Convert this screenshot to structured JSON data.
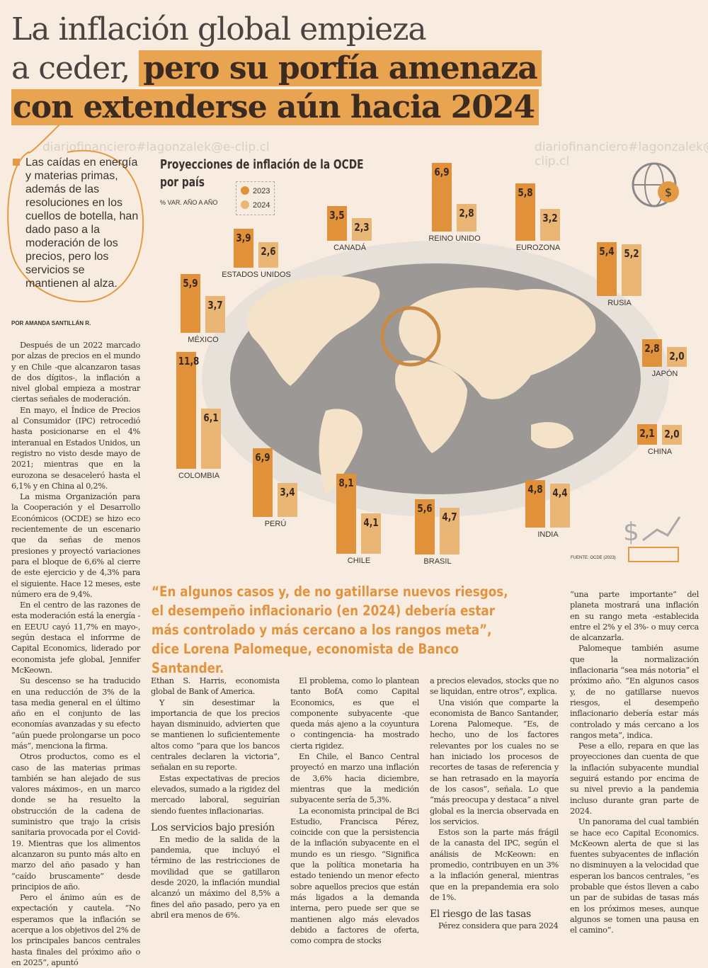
{
  "headline": {
    "line1": "La inflación global empieza",
    "line2a": "a ceder, ",
    "line2b": "pero su porfía amenaza",
    "line3": "con extenderse aún hacia 2024"
  },
  "watermark": "diariofinanciero#lagonzalek@e-clip.cl",
  "lead": "Las caídas en energía y materias primas, además de las resoluciones en los cuellos de botella, han dado paso a la moderación de los precios, pero los servicios se mantienen al alza.",
  "byline": "POR AMANDA SANTILLÁN R.",
  "chart": {
    "title_line1": "Proyecciones de inflación de la OCDE",
    "title_line2": "por país",
    "subtitle": "% VAR. AÑO A AÑO",
    "source": "FUENTE: OCDE (2023)"
  },
  "chart_data": {
    "type": "bar",
    "title": "Proyecciones de inflación de la OCDE por país",
    "ylabel": "% VAR. AÑO A AÑO",
    "legend": [
      "2023",
      "2024"
    ],
    "colors": {
      "2023": "#e0913a",
      "2024": "#eab676"
    },
    "countries": [
      {
        "name": "ESTADOS UNIDOS",
        "v2023": "3,9",
        "v2024": "2,6"
      },
      {
        "name": "CANADÁ",
        "v2023": "3,5",
        "v2024": "2,3"
      },
      {
        "name": "REINO UNIDO",
        "v2023": "6,9",
        "v2024": "2,8"
      },
      {
        "name": "EUROZONA",
        "v2023": "5,8",
        "v2024": "3,2"
      },
      {
        "name": "RUSIA",
        "v2023": "5,4",
        "v2024": "5,2"
      },
      {
        "name": "MÉXICO",
        "v2023": "5,9",
        "v2024": "3,7"
      },
      {
        "name": "JAPÓN",
        "v2023": "2,8",
        "v2024": "2,0"
      },
      {
        "name": "COLOMBIA",
        "v2023": "11,8",
        "v2024": "6,1"
      },
      {
        "name": "CHINA",
        "v2023": "2,1",
        "v2024": "2,0"
      },
      {
        "name": "PERÚ",
        "v2023": "6,9",
        "v2024": "3,4"
      },
      {
        "name": "CHILE",
        "v2023": "8,1",
        "v2024": "4,1"
      },
      {
        "name": "BRASIL",
        "v2023": "5,6",
        "v2024": "4,7"
      },
      {
        "name": "INDIA",
        "v2023": "4,8",
        "v2024": "4,4"
      }
    ]
  },
  "quote": "“En algunos casos y, de no gatillarse nuevos riesgos, el desempeño inflacionario (en 2024) debería estar más controlado y más cercano a los rangos meta”, dice Lorena Palomeque, economista de Banco Santander.",
  "col1": [
    "Después de un 2022 marcado por alzas de precios en el mundo y en Chile -que alcanzaron tasas de dos dígitos-, la inflación a nivel global empieza a mostrar ciertas señales de moderación.",
    "En mayo, el Índice de Precios al Consumidor (IPC) retrocedió hasta posicionarse en el 4% interanual en Estados Unidos, un registro no visto desde mayo de 2021; mientras que en la eurozona se desaceleró hasta el 6,1% y en China al 0,2%.",
    "La misma Organización para la Cooperación y el Desarrollo Económicos (OCDE) se hizo eco recientemente de un escenario que da señas de menos presiones y proyectó variaciones para el bloque de 6,6% al cierre de este ejercicio y de 4,3% para el siguiente. Hace 12 meses, este número era de 9,4%.",
    "En el centro de las razones de esta moderación está la energía -en EEUU cayó 11,7% en mayo-, según destaca el inforrme de Capital Economics, liderado por economista jefe global, Jennifer McKeown.",
    "Su descenso se ha traducido en una reducción de 3% de la tasa media general en el último año en el conjunto de las economías avanzadas y su efecto “aún puede prolongarse un poco más”, menciona la firma.",
    "Otros productos, como es el caso de las materias primas también se han alejado de sus valores máximos-, en un marco donde se ha resuelto la obstrucción de la cadena de suministro que trajo la crisis sanitaria provocada por el Covid-19. Mientras que los alimentos alcanzaron su punto más alto en marzo del año pasado y han “caído bruscamente” desde principios de año.",
    "Pero el ánimo aún es de expectación y cautela. “No esperamos que la inflación se acerque a los objetivos del 2% de los principales bancos centrales hasta finales del próximo año o en 2025”, apuntó"
  ],
  "col2": {
    "p0": "Ethan S. Harris, economista global de Bank of America.",
    "p1": "Y sin desestimar la importancia de que los precios hayan disminuido, advierten que se mantienen lo suficientemente altos como “para que los bancos centrales declaren la victoria”, señalan en su reporte.",
    "p2": "Estas expectativas de precios elevados, sumado a la rigidez del mercado laboral, seguirían siendo fuentes inflacionarias.",
    "h": "Los servicios bajo presión",
    "p3": "En medio de la salida de la pandemia, que incluyó el término de las restricciones de movilidad que se gatillaron desde 2020, la inflación mundial alcanzó un máximo del 8,5% a fines del año pasado, pero ya en abril era menos de 6%."
  },
  "col3": [
    "El problema, como lo plantean tanto BofA como Capital Economics, es que el componente subyacente -que queda más ajeno a la coyuntura o contingencia- ha mostrado cierta rigidez.",
    "En Chile, el Banco Central proyectó en marzo una inflación de 3,6% hacia diciembre, mientras que la medición subyacente sería de 5,3%.",
    "La economista principal de Bci Estudio, Francisca Pérez, coincide con que la persistencia de la inflación subyacente en el mundo es un riesgo. “Significa que la política monetaria ha estado teniendo un menor efecto sobre aquellos precios que están más ligados a la demanda interna, pero puede ser que se mantienen algo más elevados debido a factores de oferta, como compra de stocks"
  ],
  "col4": {
    "p0": "a precios elevados, stocks que no se liquidan, entre otros”, explica.",
    "p1": "Una visión que comparte la economista de Banco Santander, Lorena Palomeque. “Es, de hecho, uno de los factores relevantes por los cuales no se han iniciado los procesos de recortes de tasas de referencia y se han retrasado en la mayoría de los casos”, señala. Lo que “más preocupa y destaca” a nivel global es la inercia observada en los servicios.",
    "p2": "Estos son la parte más frágil de la canasta del IPC, según el análisis de McKeown: en promedio, contribuyen en un 3% a la inflación general, mientras que en la prepandemia era solo de 1%.",
    "h": "El riesgo de las tasas",
    "p3": "Pérez considera que para 2024"
  },
  "col5": [
    "“una parte importante” del planeta mostrará una inflación en su rango meta -establecida entre el 2% y el 3%- o muy cerca de alcanzarla.",
    "Palomeque también asume que la normalización inflacionaria “sea más notoria” el próximo año. “En algunos casos y, de no gatillarse nuevos riesgos, el desempeño inflacionario debería estar más controlado y más cercano a los rangos meta”, indica.",
    "Pese a ello, repara en que las proyecciones dan cuenta de que la inflación subyacente mundial seguirá estando por encima de su nivel previo a la pandemia incluso durante gran parte de 2024.",
    "Un panorama del cual también se hace eco Capital Economics. McKeown alerta de que  si las fuentes subyacentes de inflación no disminuyen a la velocidad que esperan los bancos centrales, “es probable que éstos lleven a cabo un par de subidas de tasas más en los próximos meses, aunque algunos se tomen una pausa en el camino”."
  ]
}
